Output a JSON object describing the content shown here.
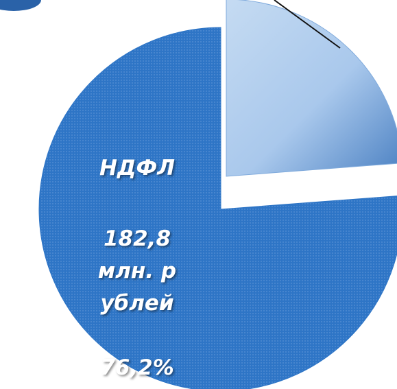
{
  "chart_data": {
    "type": "pie",
    "categories": [
      "НДФЛ",
      null
    ],
    "values": [
      76.2,
      23.8
    ],
    "value_labels": [
      "76,2%",
      null
    ],
    "amount_labels": [
      "182,8 млн. рублей",
      null
    ],
    "colors": [
      "#2e75c6",
      "#7faadc"
    ]
  }
}
